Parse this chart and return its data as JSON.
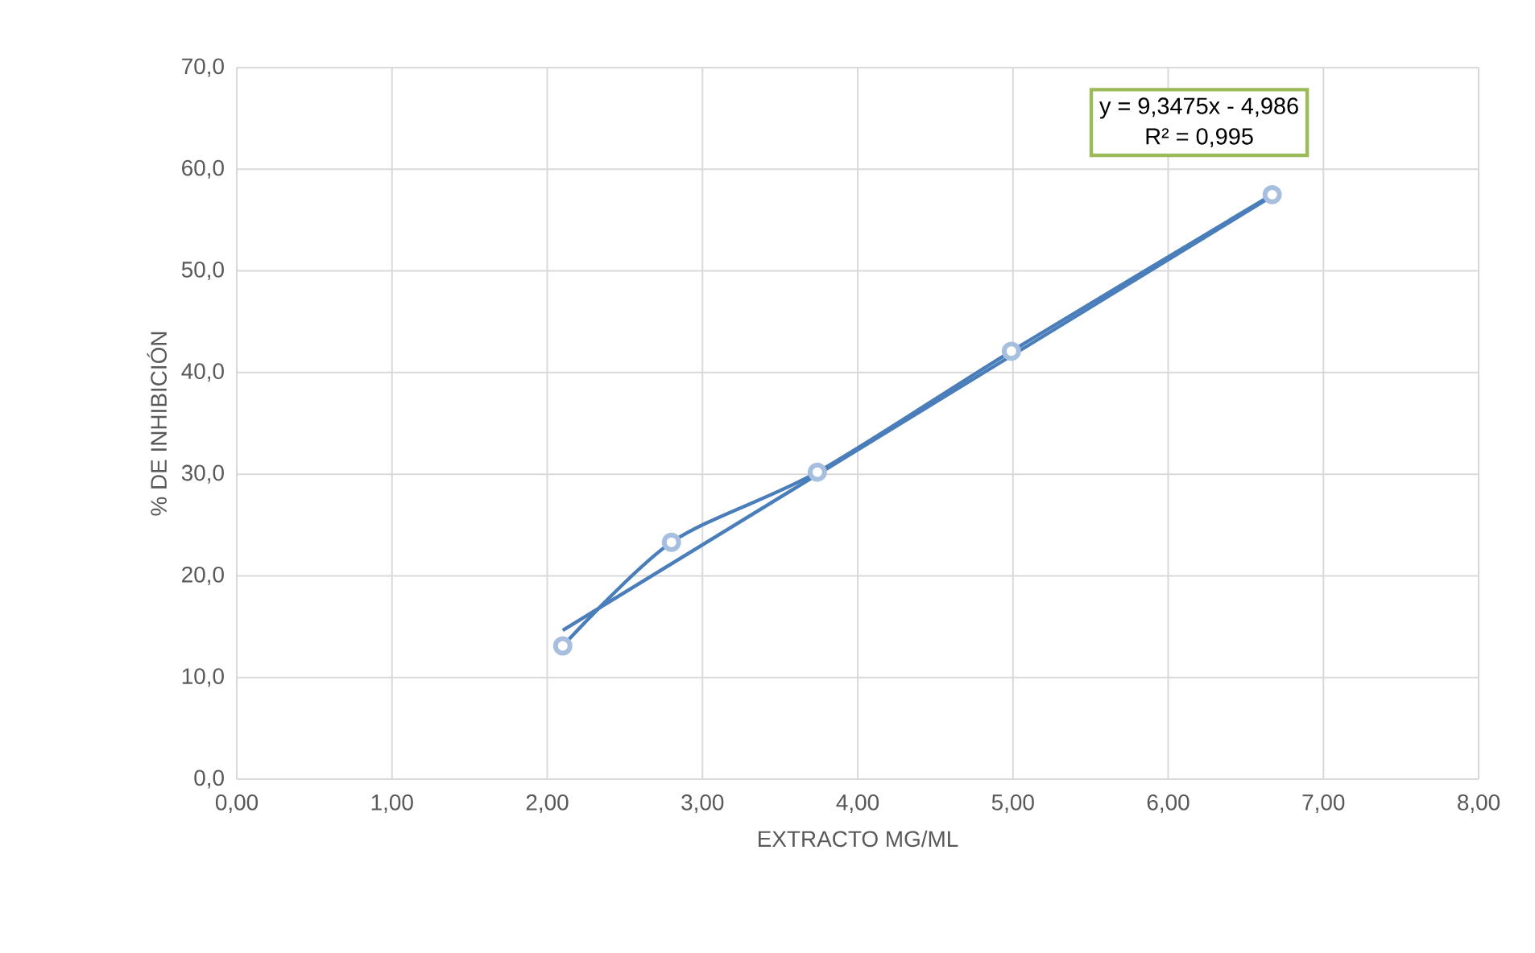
{
  "chart_data": {
    "type": "line",
    "xlabel": "EXTRACTO MG/ML",
    "ylabel": "% DE INHIBICIÓN",
    "xlim": [
      0,
      8
    ],
    "ylim": [
      0,
      70
    ],
    "xticks": [
      {
        "value": 0,
        "label": "0,00"
      },
      {
        "value": 1,
        "label": "1,00"
      },
      {
        "value": 2,
        "label": "2,00"
      },
      {
        "value": 3,
        "label": "3,00"
      },
      {
        "value": 4,
        "label": "4,00"
      },
      {
        "value": 5,
        "label": "5,00"
      },
      {
        "value": 6,
        "label": "6,00"
      },
      {
        "value": 7,
        "label": "7,00"
      },
      {
        "value": 8,
        "label": "8,00"
      }
    ],
    "yticks": [
      {
        "value": 0,
        "label": "0,0"
      },
      {
        "value": 10,
        "label": "10,0"
      },
      {
        "value": 20,
        "label": "20,0"
      },
      {
        "value": 30,
        "label": "30,0"
      },
      {
        "value": 40,
        "label": "40,0"
      },
      {
        "value": 50,
        "label": "50,0"
      },
      {
        "value": 60,
        "label": "60,0"
      },
      {
        "value": 70,
        "label": "70,0"
      }
    ],
    "grid": true,
    "marker": "circle",
    "series": [
      {
        "color": "#4a7ebb",
        "x": [
          2.1,
          2.8,
          3.74,
          4.99,
          6.67
        ],
        "values": [
          13.1,
          23.3,
          30.2,
          42.1,
          57.5
        ]
      },
      {
        "type": "line",
        "color": "#4a7ebb",
        "marker": "none",
        "x": [
          2.1,
          6.67
        ],
        "values": [
          14.64,
          57.36
        ]
      }
    ],
    "annotations": [
      "y = 9,3475x - 4,986",
      "R² = 0,995"
    ]
  }
}
